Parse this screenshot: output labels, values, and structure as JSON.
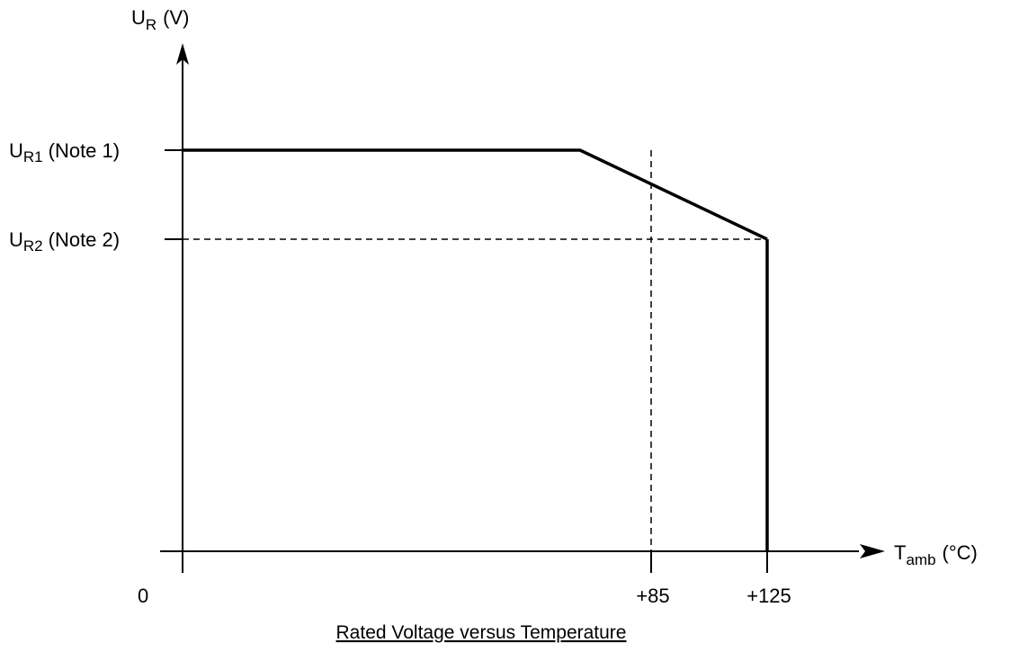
{
  "chart_data": {
    "type": "line",
    "title": "Rated Voltage versus Temperature",
    "y_axis": {
      "label_main": "U",
      "label_sub": "R",
      "label_unit": "(V)"
    },
    "x_axis": {
      "label_main": "T",
      "label_sub": "amb",
      "label_unit": "(°C)"
    },
    "origin_label": "0",
    "x_ticks": [
      "+85",
      "+125"
    ],
    "y_levels": [
      {
        "main": "U",
        "sub": "R1",
        "note": "(Note 1)"
      },
      {
        "main": "U",
        "sub": "R2",
        "note": "(Note 2)"
      }
    ],
    "series": [
      {
        "points": [
          {
            "x": 0,
            "y": "UR1"
          },
          {
            "x": 85,
            "y": "UR1"
          },
          {
            "x": 125,
            "y": "UR2"
          }
        ]
      }
    ],
    "xlim": [
      0,
      125
    ],
    "grid": false
  }
}
